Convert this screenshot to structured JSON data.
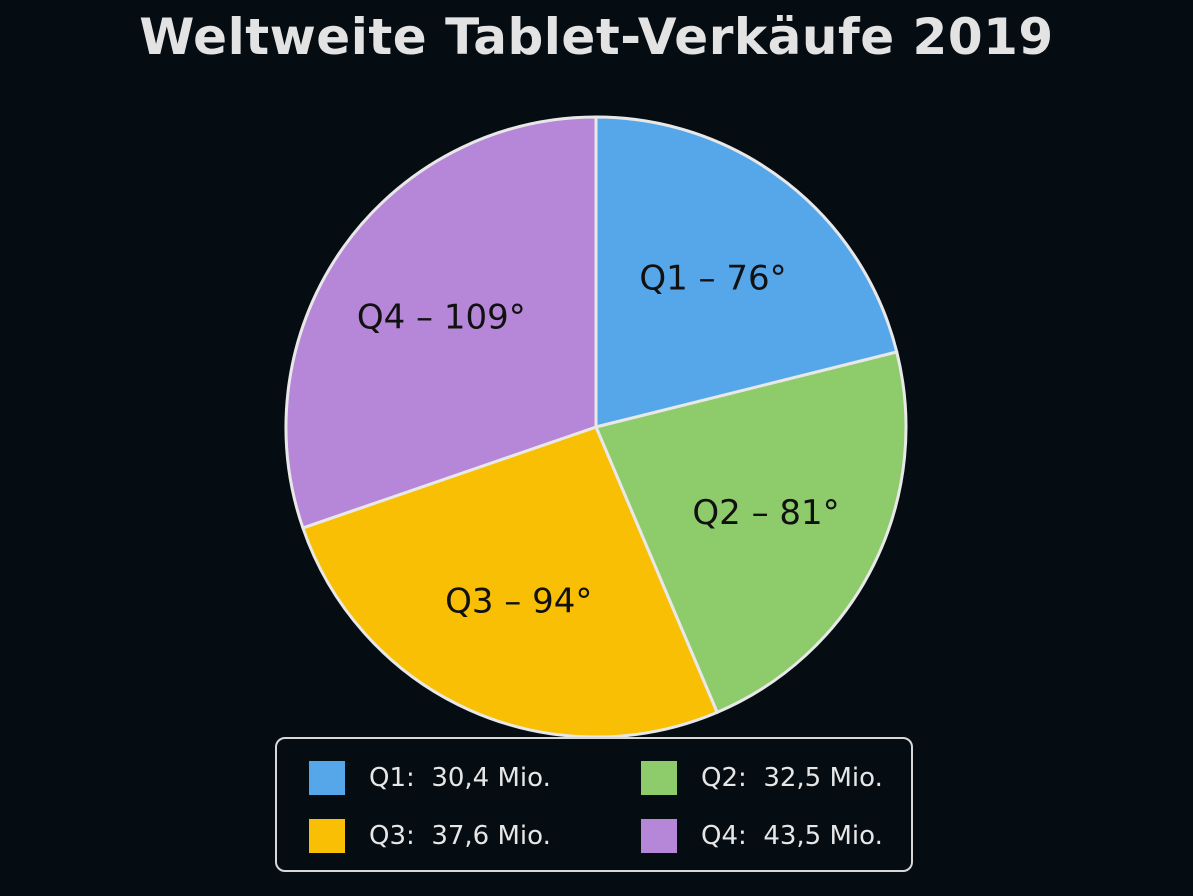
{
  "chart_data": {
    "type": "pie",
    "title": "Weltweite Tablet-Verkäufe 2019",
    "slices": [
      {
        "name": "Q1",
        "degrees": 76,
        "slice_label": "Q1 – 76°",
        "legend_value": "30,4 Mio.",
        "color": "#56a7ea"
      },
      {
        "name": "Q2",
        "degrees": 81,
        "slice_label": "Q2 – 81°",
        "legend_value": "32,5 Mio.",
        "color": "#8ecb6b"
      },
      {
        "name": "Q3",
        "degrees": 94,
        "slice_label": "Q3 – 94°",
        "legend_value": "37,6 Mio.",
        "color": "#f9bf05"
      },
      {
        "name": "Q4",
        "degrees": 109,
        "slice_label": "Q4 – 109°",
        "legend_value": "43,5 Mio.",
        "color": "#b686d8"
      }
    ],
    "start_angle": "12 o'clock",
    "direction": "clockwise",
    "legend_placement": "bottom",
    "legend_columns": 2
  }
}
